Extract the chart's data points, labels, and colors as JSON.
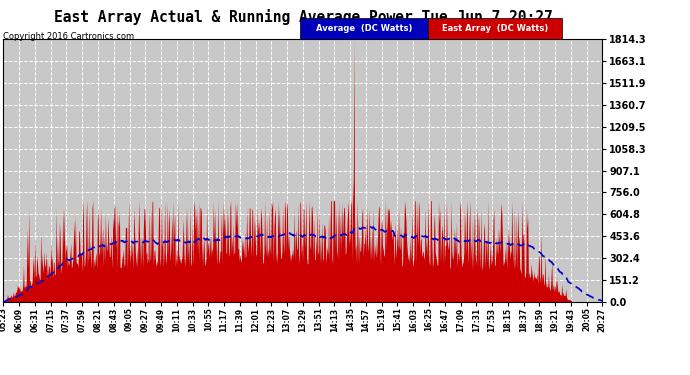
{
  "title": "East Array Actual & Running Average Power Tue Jun 7 20:27",
  "copyright": "Copyright 2016 Cartronics.com",
  "legend_avg": "Average  (DC Watts)",
  "legend_east": "East Array  (DC Watts)",
  "yticks": [
    0.0,
    151.2,
    302.4,
    453.6,
    604.8,
    756.0,
    907.1,
    1058.3,
    1209.5,
    1360.7,
    1511.9,
    1663.1,
    1814.3
  ],
  "ymax": 1814.3,
  "bg_color": "#ffffff",
  "plot_bg_color": "#c8c8c8",
  "grid_color": "#ffffff",
  "area_color": "#cc0000",
  "line_color": "#0000cc",
  "xtick_labels": [
    "05:23",
    "06:09",
    "06:31",
    "07:15",
    "07:37",
    "07:59",
    "08:21",
    "08:43",
    "09:05",
    "09:27",
    "09:49",
    "10:11",
    "10:33",
    "10:55",
    "11:17",
    "11:39",
    "12:01",
    "12:23",
    "13:07",
    "13:29",
    "13:51",
    "14:13",
    "14:35",
    "14:57",
    "15:19",
    "15:41",
    "16:03",
    "16:25",
    "16:47",
    "17:09",
    "17:31",
    "17:53",
    "18:15",
    "18:37",
    "18:59",
    "19:21",
    "19:43",
    "20:05",
    "20:27"
  ]
}
